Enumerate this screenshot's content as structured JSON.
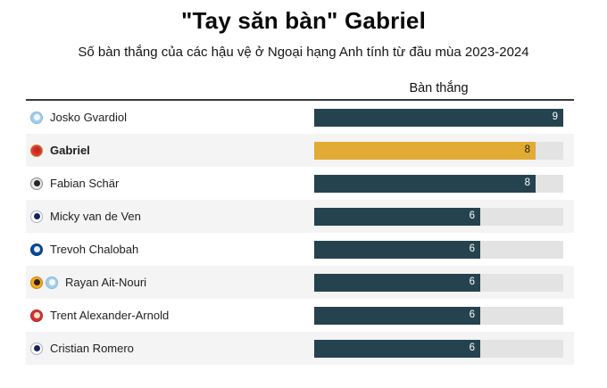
{
  "header": {
    "title": "\"Tay săn bàn\" Gabriel",
    "subtitle": "Số bàn thắng của các hậu vệ ở Ngoại hạng Anh tính từ đầu mùa 2023-2024"
  },
  "chart_data": {
    "type": "bar",
    "orientation": "horizontal",
    "title": "\"Tay săn bàn\" Gabriel",
    "subtitle": "Số bàn thắng của các hậu vệ ở Ngoại hạng Anh tính từ đầu mùa 2023-2024",
    "value_axis_label": "Bàn thắng",
    "xlim": [
      0,
      9
    ],
    "grid": false,
    "legend": false,
    "highlighted_category": "Gabriel",
    "categories": [
      "Josko Gvardiol",
      "Gabriel",
      "Fabian Schär",
      "Micky van de Ven",
      "Trevoh Chalobah",
      "Rayan Ait-Nouri",
      "Trent Alexander-Arnold",
      "Cristian Romero"
    ],
    "values": [
      9,
      8,
      8,
      6,
      6,
      6,
      6,
      6
    ],
    "colors": {
      "bar": "#25424f",
      "highlight_bar": "#e2ab33",
      "track": "#e3e3e3",
      "value_text": "#ffffff",
      "highlight_value_text": "#26200f",
      "row_stripe": "#f4f4f5",
      "rule": "#383838"
    },
    "rows": [
      {
        "player": "Josko Gvardiol",
        "clubs": [
          "man-city"
        ],
        "value": 9,
        "highlight": false
      },
      {
        "player": "Gabriel",
        "clubs": [
          "arsenal"
        ],
        "value": 8,
        "highlight": true
      },
      {
        "player": "Fabian Schär",
        "clubs": [
          "newcastle"
        ],
        "value": 8,
        "highlight": false
      },
      {
        "player": "Micky van de Ven",
        "clubs": [
          "tottenham"
        ],
        "value": 6,
        "highlight": false
      },
      {
        "player": "Trevoh Chalobah",
        "clubs": [
          "chelsea"
        ],
        "value": 6,
        "highlight": false
      },
      {
        "player": "Rayan Ait-Nouri",
        "clubs": [
          "wolves",
          "man-city"
        ],
        "value": 6,
        "highlight": false
      },
      {
        "player": "Trent Alexander-Arnold",
        "clubs": [
          "liverpool"
        ],
        "value": 6,
        "highlight": false
      },
      {
        "player": "Cristian Romero",
        "clubs": [
          "tottenham"
        ],
        "value": 6,
        "highlight": false
      }
    ]
  },
  "clubs": {
    "man-city": {
      "label": "Manchester City crest",
      "outer": "#a9cde9",
      "inner": "#f2f7fa",
      "border": "#85b7dd"
    },
    "arsenal": {
      "label": "Arsenal crest",
      "outer": "#dd3832",
      "inner": "#c8281f",
      "border": "#b9923e"
    },
    "newcastle": {
      "label": "Newcastle United crest",
      "outer": "#e8e8e8",
      "inner": "#23232b",
      "border": "#8a8a8a"
    },
    "tottenham": {
      "label": "Tottenham Hotspur crest",
      "outer": "#ffffff",
      "inner": "#17215c",
      "border": "#aab1c8"
    },
    "chelsea": {
      "label": "Chelsea crest",
      "outer": "#0b4a97",
      "inner": "#e8eef7",
      "border": "#083a78"
    },
    "wolves": {
      "label": "Wolves crest",
      "outer": "#f5a823",
      "inner": "#2b2118",
      "border": "#c8860f"
    },
    "liverpool": {
      "label": "Liverpool crest",
      "outer": "#d8322f",
      "inner": "#efe3cf",
      "border": "#b52622"
    }
  }
}
